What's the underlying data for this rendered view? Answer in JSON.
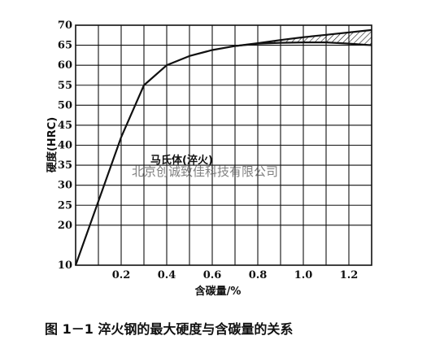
{
  "chart_data": {
    "type": "line",
    "xlabel": "含碳量/%",
    "ylabel": "硬度(HRC)",
    "xlim": [
      0,
      1.3
    ],
    "ylim": [
      10,
      70
    ],
    "x_ticks": [
      {
        "value": 0.2,
        "label": "0.2"
      },
      {
        "value": 0.4,
        "label": "0.4"
      },
      {
        "value": 0.6,
        "label": "0.6"
      },
      {
        "value": 0.8,
        "label": "0.8"
      },
      {
        "value": 1.0,
        "label": "1.0"
      },
      {
        "value": 1.2,
        "label": "1.2"
      }
    ],
    "y_ticks": [
      {
        "value": 10,
        "label": "10"
      },
      {
        "value": 20,
        "label": "20"
      },
      {
        "value": 25,
        "label": "25"
      },
      {
        "value": 30,
        "label": "30"
      },
      {
        "value": 35,
        "label": "35"
      },
      {
        "value": 40,
        "label": "40"
      },
      {
        "value": 45,
        "label": "45"
      },
      {
        "value": 50,
        "label": "50"
      },
      {
        "value": 55,
        "label": "55"
      },
      {
        "value": 60,
        "label": "60"
      },
      {
        "value": 65,
        "label": "65"
      },
      {
        "value": 70,
        "label": "70"
      }
    ],
    "grid": true,
    "annotation": "马氏体(淬火)",
    "series": [
      {
        "x": [
          0.0,
          0.1,
          0.2,
          0.3,
          0.4,
          0.5,
          0.6,
          0.7,
          0.8,
          0.9,
          1.0,
          1.1,
          1.2,
          1.3
        ],
        "y": [
          10,
          26,
          42,
          55,
          60,
          62.3,
          63.8,
          64.8,
          65.5,
          66.3,
          67.0,
          67.6,
          68.2,
          68.8
        ]
      },
      {
        "x": [
          0.7,
          0.8,
          0.9,
          1.0,
          1.1,
          1.2,
          1.3
        ],
        "y": [
          64.8,
          65.4,
          65.6,
          65.7,
          65.7,
          65.4,
          65.0
        ]
      }
    ]
  },
  "watermark": "北京创诚致佳科技有限公司",
  "caption": "图 1－1  淬火钢的最大硬度与含碳量的关系"
}
